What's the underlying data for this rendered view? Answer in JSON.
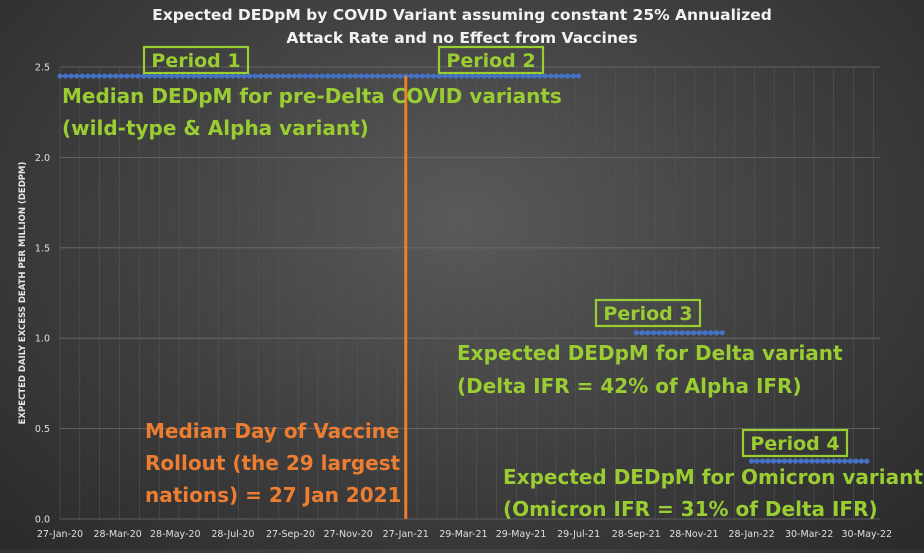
{
  "chart_data": {
    "type": "line",
    "title": [
      "Expected DEDpM by COVID Variant assuming constant 25% Annualized",
      "Attack Rate and no Effect from Vaccines"
    ],
    "ylabel": "EXPECTED DAILY EXCESS DEATH PER MILLION (DEDPM)",
    "xlabel": "",
    "ylim": [
      0,
      2.5
    ],
    "yticks": [
      "0.0",
      "0.5",
      "1.0",
      "1.5",
      "2.0",
      "2.5"
    ],
    "x_tick_labels": [
      "27-Jan-20",
      "28-Mar-20",
      "28-May-20",
      "28-Jul-20",
      "27-Sep-20",
      "27-Nov-20",
      "27-Jan-21",
      "29-Mar-21",
      "29-May-21",
      "29-Jul-21",
      "28-Sep-21",
      "28-Nov-21",
      "28-Jan-22",
      "30-Mar-22",
      "30-May-22"
    ],
    "grid": true,
    "series": [
      {
        "segment": "pre-Delta",
        "color": "#4472C4",
        "start": "27-Jan-20",
        "end": "29-Jul-21",
        "value": 2.45
      },
      {
        "segment": "Delta",
        "color": "#4472C4",
        "start": "28-Sep-21",
        "end": "28-Dec-21",
        "value": 1.03
      },
      {
        "segment": "Omicron",
        "color": "#4472C4",
        "start": "28-Jan-22",
        "end": "30-May-22",
        "value": 0.32
      }
    ],
    "vaccine_line": {
      "date": "27-Jan-21",
      "color": "#ED7D31"
    },
    "annotations": {
      "period1": "Period 1",
      "period2": "Period 2",
      "period3": "Period 3",
      "period4": "Period 4",
      "pre_delta": [
        "Median DEDpM for pre-Delta COVID variants",
        "(wild-type & Alpha variant)"
      ],
      "delta": [
        "Expected DEDpM for Delta variant",
        "(Delta IFR = 42% of Alpha IFR)"
      ],
      "omicron": [
        "Expected DEDpM for Omicron variant",
        "(Omicron IFR = 31% of Delta IFR)"
      ],
      "vaccine": [
        "Median Day of Vaccine",
        "Rollout (the 29 largest",
        "nations) = 27 Jan 2021"
      ]
    }
  }
}
